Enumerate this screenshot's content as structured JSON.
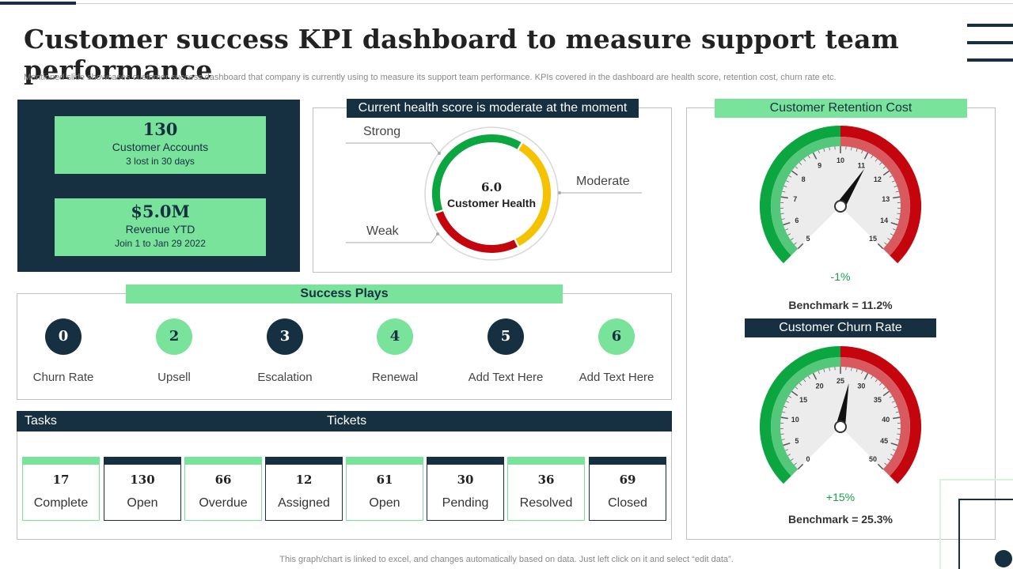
{
  "header": {
    "title": "Customer success KPI dashboard to measure support team performance",
    "subtitle": "Mentioned slide showcases customer success dashboard that company is currently using to measure its support team performance. KPIs covered in the dashboard are health score, retention cost, churn rate etc."
  },
  "kpis": [
    {
      "value": "130",
      "label": "Customer Accounts",
      "sub": "3 lost in 30 days"
    },
    {
      "value": "$5.0M",
      "label": "Revenue YTD",
      "sub": "Join 1 to Jan 29 2022"
    }
  ],
  "health": {
    "title": "Current health score is moderate at the moment",
    "score": "6.0",
    "score_label": "Customer Health",
    "strong": "Strong",
    "moderate": "Moderate",
    "weak": "Weak"
  },
  "success_plays": {
    "title": "Success Plays",
    "items": [
      {
        "num": "0",
        "label": "Churn Rate"
      },
      {
        "num": "2",
        "label": "Upsell"
      },
      {
        "num": "3",
        "label": "Escalation"
      },
      {
        "num": "4",
        "label": "Renewal"
      },
      {
        "num": "5",
        "label": "Add Text Here"
      },
      {
        "num": "6",
        "label": "Add Text Here"
      }
    ]
  },
  "tasks": {
    "tasks_label": "Tasks",
    "tickets_label": "Tickets",
    "items": [
      {
        "value": "17",
        "label": "Complete"
      },
      {
        "value": "130",
        "label": "Open"
      },
      {
        "value": "66",
        "label": "Overdue"
      },
      {
        "value": "12",
        "label": "Assigned"
      },
      {
        "value": "61",
        "label": "Open"
      },
      {
        "value": "30",
        "label": "Pending"
      },
      {
        "value": "36",
        "label": "Resolved"
      },
      {
        "value": "69",
        "label": "Closed"
      }
    ]
  },
  "retention": {
    "title": "Customer Retention Cost",
    "ticks": [
      "5",
      "6",
      "7",
      "8",
      "9",
      "10",
      "11",
      "12",
      "13",
      "14",
      "15"
    ],
    "change": "-1%",
    "benchmark": "Benchmark = 11.2%"
  },
  "churn": {
    "title": "Customer Churn Rate",
    "ticks": [
      "0",
      "5",
      "10",
      "15",
      "20",
      "25",
      "30",
      "35",
      "40",
      "45",
      "50"
    ],
    "change": "+15%",
    "benchmark": "Benchmark = 25.3%"
  },
  "footnote": "This graph/chart is linked to excel,  and changes automatically based on data. Just left click on it and select “edit data”.",
  "colors": {
    "navy": "#163042",
    "green": "#79e29b",
    "gauge_green": "#0ca640",
    "gauge_red": "#c4050e",
    "amber": "#f5c200"
  }
}
